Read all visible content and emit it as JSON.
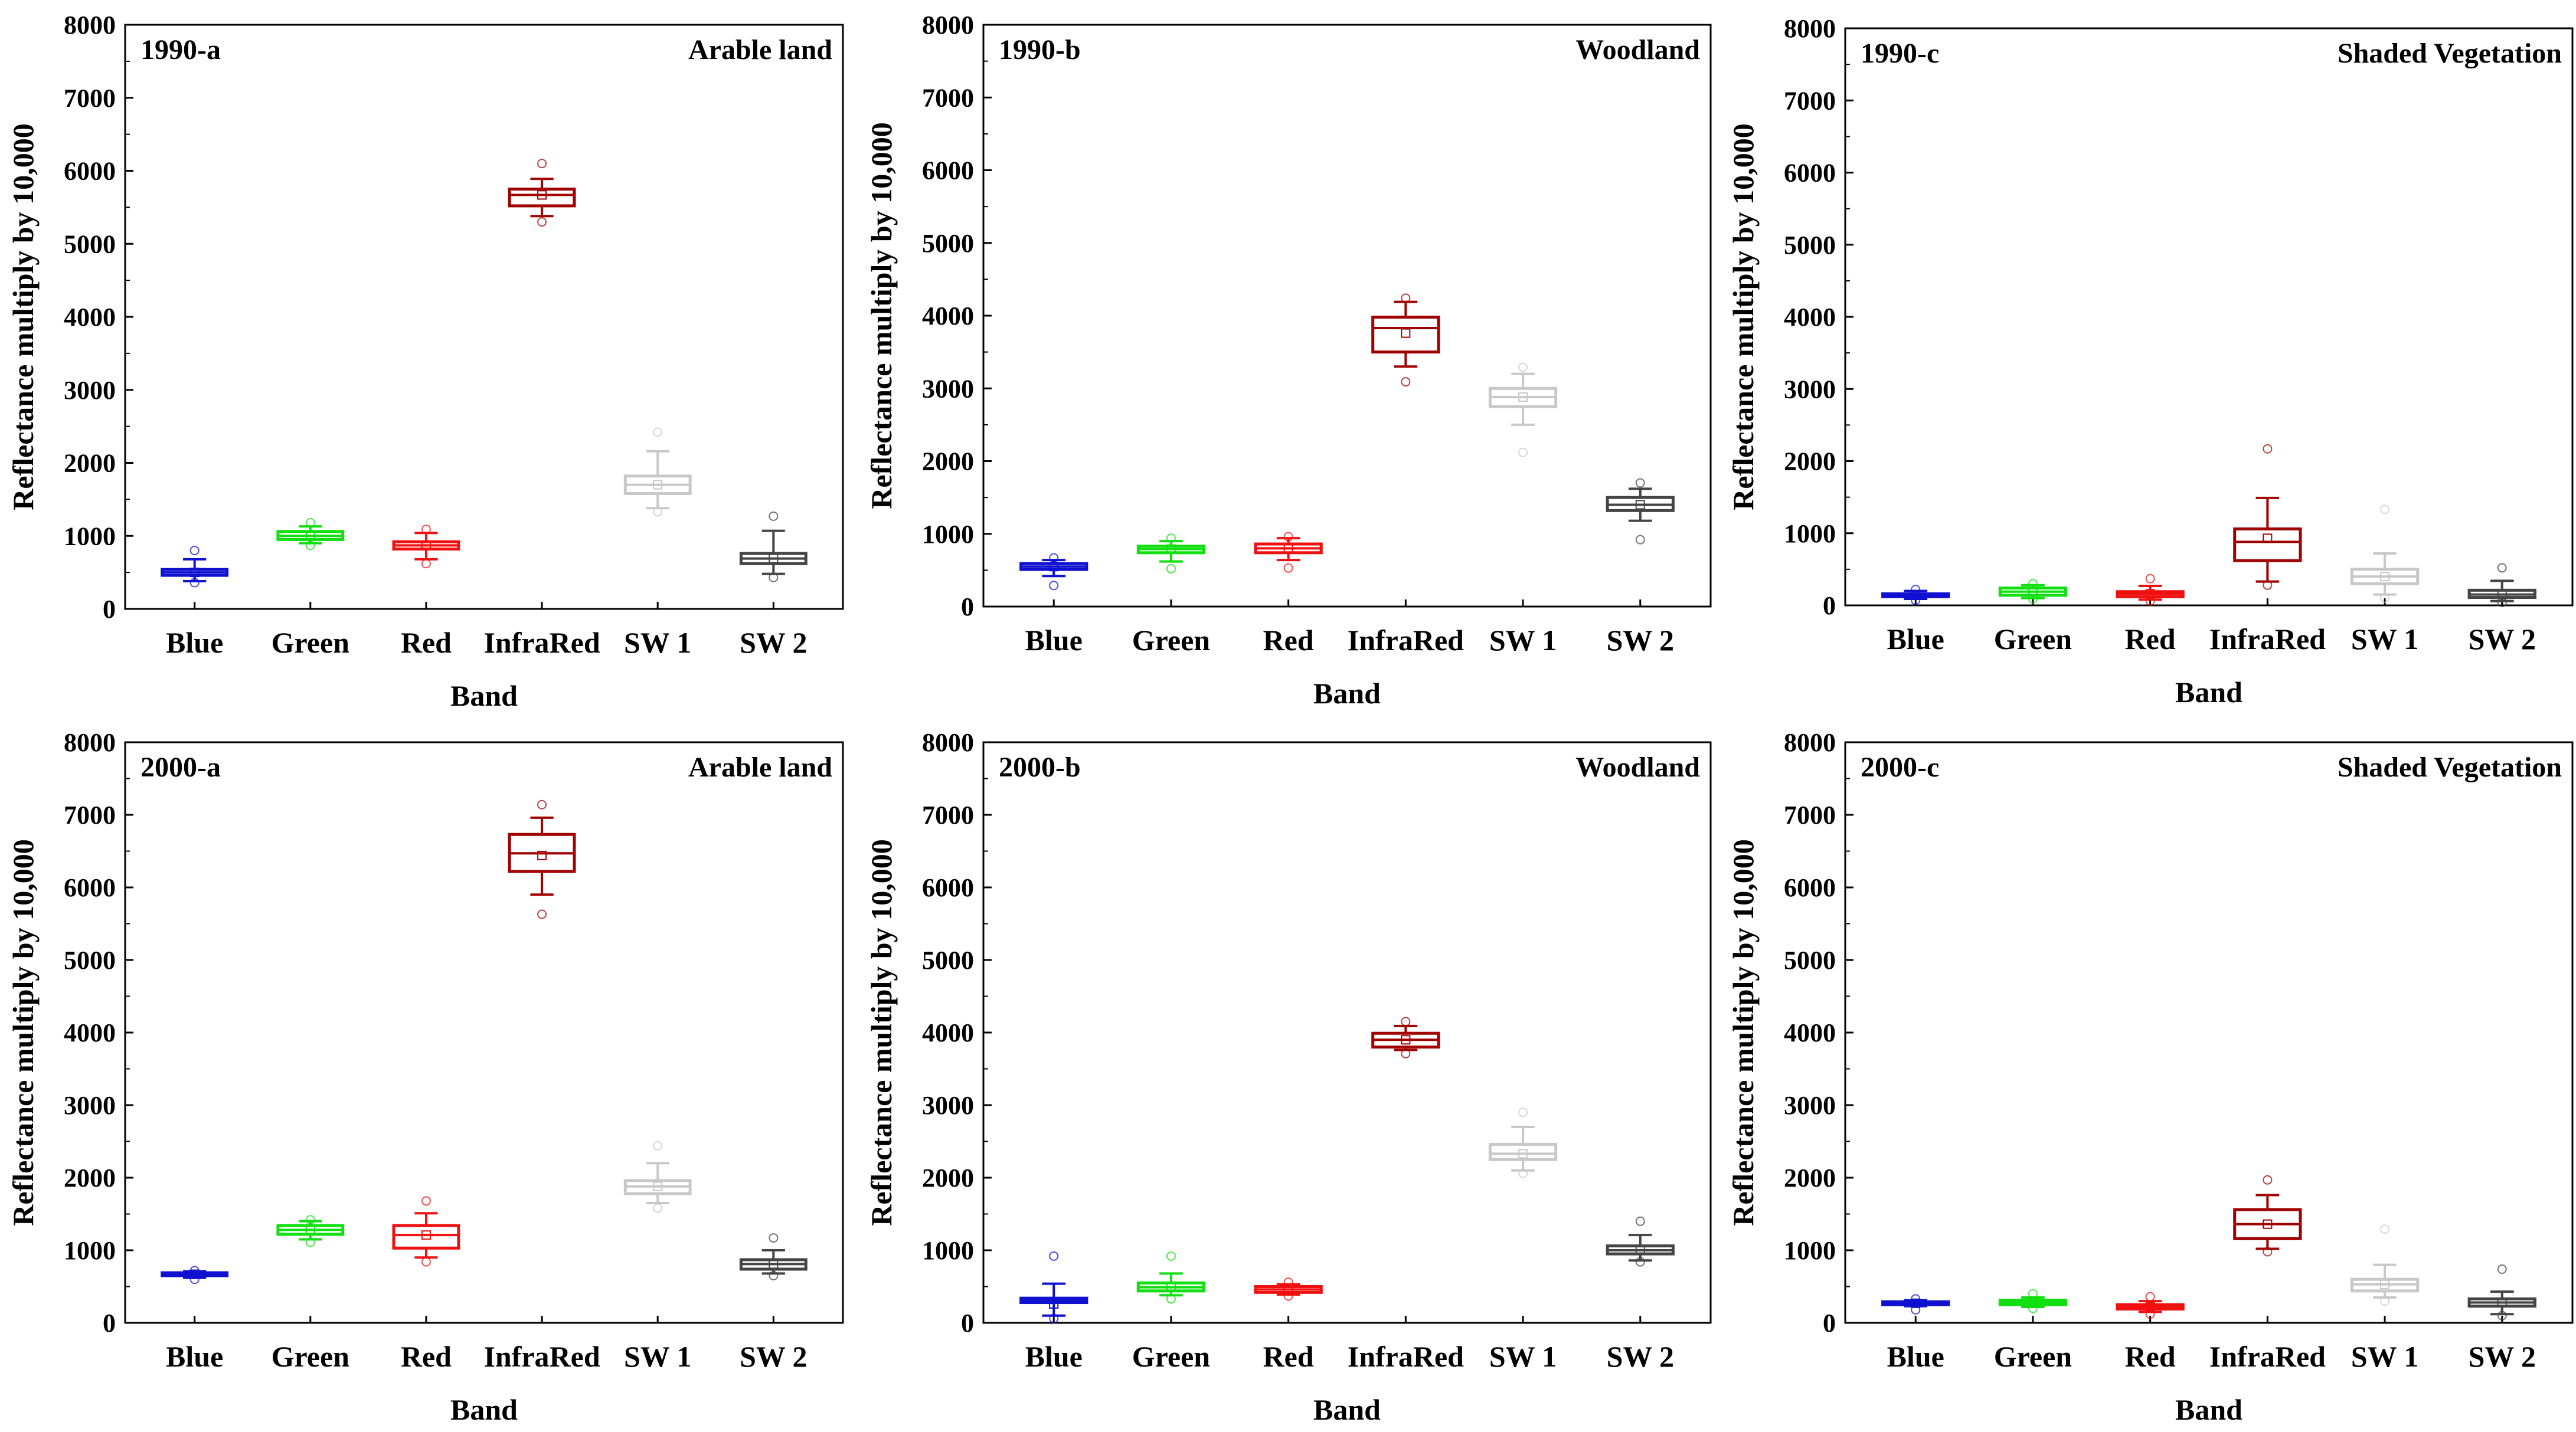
{
  "figure": {
    "shared": {
      "ylabel": "Reflectance multiply by 10,000",
      "xlabel": "Band",
      "ylim": [
        0,
        8000
      ],
      "yticks": [
        0,
        1000,
        2000,
        3000,
        4000,
        5000,
        6000,
        7000,
        8000
      ]
    }
  },
  "chart_data": [
    {
      "type": "box",
      "panel_id": "1990-a",
      "title": "Arable land",
      "xlabel": "Band",
      "ylabel": "Reflectance multiply by 10,000",
      "ylim": [
        0,
        8000
      ],
      "categories": [
        "Blue",
        "Green",
        "Red",
        "InfraRed",
        "SW 1",
        "SW 2"
      ],
      "colors": [
        "#1010d0",
        "#10e010",
        "#f01010",
        "#a00000",
        "#c8c8c8",
        "#444444"
      ],
      "boxes": [
        {
          "low": 380,
          "q1": 460,
          "median": 500,
          "q3": 540,
          "high": 680,
          "mean": 500,
          "outliers": [
            800,
            360
          ]
        },
        {
          "low": 900,
          "q1": 950,
          "median": 1000,
          "q3": 1060,
          "high": 1130,
          "mean": 1000,
          "outliers": [
            1180,
            870
          ]
        },
        {
          "low": 680,
          "q1": 820,
          "median": 870,
          "q3": 920,
          "high": 1040,
          "mean": 870,
          "outliers": [
            1090,
            620
          ]
        },
        {
          "low": 5380,
          "q1": 5520,
          "median": 5670,
          "q3": 5750,
          "high": 5890,
          "mean": 5670,
          "outliers": [
            6100,
            5300
          ]
        },
        {
          "low": 1380,
          "q1": 1580,
          "median": 1700,
          "q3": 1820,
          "high": 2160,
          "mean": 1700,
          "outliers": [
            2420,
            1330
          ]
        },
        {
          "low": 480,
          "q1": 620,
          "median": 690,
          "q3": 760,
          "high": 1070,
          "mean": 690,
          "outliers": [
            1270,
            430
          ]
        }
      ]
    },
    {
      "type": "box",
      "panel_id": "1990-b",
      "title": "Woodland",
      "xlabel": "Band",
      "ylabel": "Reflectance multiply by 10,000",
      "ylim": [
        0,
        8000
      ],
      "categories": [
        "Blue",
        "Green",
        "Red",
        "InfraRed",
        "SW 1",
        "SW 2"
      ],
      "colors": [
        "#1010d0",
        "#10e010",
        "#f01010",
        "#a00000",
        "#c8c8c8",
        "#444444"
      ],
      "boxes": [
        {
          "low": 420,
          "q1": 510,
          "median": 550,
          "q3": 590,
          "high": 640,
          "mean": 550,
          "outliers": [
            670,
            290
          ]
        },
        {
          "low": 620,
          "q1": 740,
          "median": 790,
          "q3": 830,
          "high": 900,
          "mean": 790,
          "outliers": [
            940,
            520
          ]
        },
        {
          "low": 640,
          "q1": 740,
          "median": 800,
          "q3": 860,
          "high": 940,
          "mean": 800,
          "outliers": [
            960,
            530
          ]
        },
        {
          "low": 3300,
          "q1": 3500,
          "median": 3830,
          "q3": 3980,
          "high": 4190,
          "mean": 3760,
          "outliers": [
            4240,
            3090
          ]
        },
        {
          "low": 2500,
          "q1": 2750,
          "median": 2880,
          "q3": 3000,
          "high": 3200,
          "mean": 2880,
          "outliers": [
            3290,
            2120
          ]
        },
        {
          "low": 1180,
          "q1": 1320,
          "median": 1400,
          "q3": 1500,
          "high": 1620,
          "mean": 1400,
          "outliers": [
            1700,
            920
          ]
        }
      ]
    },
    {
      "type": "box",
      "panel_id": "1990-c",
      "title": "Shaded Vegetation",
      "xlabel": "Band",
      "ylabel": "Reflectance multiply by 10,000",
      "ylim": [
        0,
        8000
      ],
      "categories": [
        "Blue",
        "Green",
        "Red",
        "InfraRed",
        "SW 1",
        "SW 2"
      ],
      "colors": [
        "#1010d0",
        "#10e010",
        "#f01010",
        "#a00000",
        "#c8c8c8",
        "#444444"
      ],
      "boxes": [
        {
          "low": 90,
          "q1": 120,
          "median": 140,
          "q3": 160,
          "high": 200,
          "mean": 140,
          "outliers": [
            220,
            70
          ]
        },
        {
          "low": 100,
          "q1": 140,
          "median": 190,
          "q3": 240,
          "high": 280,
          "mean": 190,
          "outliers": [
            300,
            90
          ]
        },
        {
          "low": 80,
          "q1": 120,
          "median": 160,
          "q3": 190,
          "high": 270,
          "mean": 160,
          "outliers": [
            370,
            60
          ]
        },
        {
          "low": 330,
          "q1": 620,
          "median": 880,
          "q3": 1060,
          "high": 1490,
          "mean": 930,
          "outliers": [
            2170,
            280
          ]
        },
        {
          "low": 150,
          "q1": 300,
          "median": 400,
          "q3": 500,
          "high": 720,
          "mean": 400,
          "outliers": [
            1330,
            100
          ]
        },
        {
          "low": 60,
          "q1": 110,
          "median": 150,
          "q3": 210,
          "high": 340,
          "mean": 150,
          "outliers": [
            520,
            40
          ]
        }
      ]
    },
    {
      "type": "box",
      "panel_id": "2000-a",
      "title": "Arable land",
      "xlabel": "Band",
      "ylabel": "Reflectance multiply by 10,000",
      "ylim": [
        0,
        8000
      ],
      "categories": [
        "Blue",
        "Green",
        "Red",
        "InfraRed",
        "SW 1",
        "SW 2"
      ],
      "colors": [
        "#1010d0",
        "#10e010",
        "#f01010",
        "#a00000",
        "#c8c8c8",
        "#444444"
      ],
      "boxes": [
        {
          "low": 620,
          "q1": 650,
          "median": 670,
          "q3": 690,
          "high": 710,
          "mean": 670,
          "outliers": [
            720,
            600
          ]
        },
        {
          "low": 1150,
          "q1": 1220,
          "median": 1280,
          "q3": 1340,
          "high": 1400,
          "mean": 1280,
          "outliers": [
            1420,
            1110
          ]
        },
        {
          "low": 900,
          "q1": 1030,
          "median": 1210,
          "q3": 1340,
          "high": 1510,
          "mean": 1210,
          "outliers": [
            1680,
            840
          ]
        },
        {
          "low": 5900,
          "q1": 6220,
          "median": 6470,
          "q3": 6730,
          "high": 6960,
          "mean": 6440,
          "outliers": [
            7140,
            5630
          ]
        },
        {
          "low": 1650,
          "q1": 1780,
          "median": 1880,
          "q3": 1960,
          "high": 2200,
          "mean": 1880,
          "outliers": [
            2440,
            1580
          ]
        },
        {
          "low": 680,
          "q1": 740,
          "median": 810,
          "q3": 870,
          "high": 1000,
          "mean": 810,
          "outliers": [
            1170,
            650
          ]
        }
      ]
    },
    {
      "type": "box",
      "panel_id": "2000-b",
      "title": "Woodland",
      "xlabel": "Band",
      "ylabel": "Reflectance multiply by 10,000",
      "ylim": [
        0,
        8000
      ],
      "categories": [
        "Blue",
        "Green",
        "Red",
        "InfraRed",
        "SW 1",
        "SW 2"
      ],
      "colors": [
        "#1010d0",
        "#10e010",
        "#f01010",
        "#a00000",
        "#c8c8c8",
        "#444444"
      ],
      "boxes": [
        {
          "low": 100,
          "q1": 280,
          "median": 310,
          "q3": 340,
          "high": 540,
          "mean": 260,
          "outliers": [
            920,
            60
          ]
        },
        {
          "low": 380,
          "q1": 440,
          "median": 490,
          "q3": 550,
          "high": 680,
          "mean": 490,
          "outliers": [
            920,
            330
          ]
        },
        {
          "low": 390,
          "q1": 420,
          "median": 460,
          "q3": 500,
          "high": 530,
          "mean": 460,
          "outliers": [
            560,
            370
          ]
        },
        {
          "low": 3760,
          "q1": 3800,
          "median": 3900,
          "q3": 3990,
          "high": 4090,
          "mean": 3900,
          "outliers": [
            4150,
            3710
          ]
        },
        {
          "low": 2100,
          "q1": 2250,
          "median": 2330,
          "q3": 2460,
          "high": 2700,
          "mean": 2330,
          "outliers": [
            2900,
            2060
          ]
        },
        {
          "low": 860,
          "q1": 950,
          "median": 1000,
          "q3": 1060,
          "high": 1210,
          "mean": 1000,
          "outliers": [
            1400,
            840
          ]
        }
      ]
    },
    {
      "type": "box",
      "panel_id": "2000-c",
      "title": "Shaded Vegetation",
      "xlabel": "Band",
      "ylabel": "Reflectance multiply by 10,000",
      "ylim": [
        0,
        8000
      ],
      "categories": [
        "Blue",
        "Green",
        "Red",
        "InfraRed",
        "SW 1",
        "SW 2"
      ],
      "colors": [
        "#1010d0",
        "#10e010",
        "#f01010",
        "#a00000",
        "#c8c8c8",
        "#444444"
      ],
      "boxes": [
        {
          "low": 230,
          "q1": 250,
          "median": 270,
          "q3": 290,
          "high": 310,
          "mean": 270,
          "outliers": [
            330,
            180
          ]
        },
        {
          "low": 220,
          "q1": 250,
          "median": 280,
          "q3": 310,
          "high": 350,
          "mean": 280,
          "outliers": [
            400,
            200
          ]
        },
        {
          "low": 150,
          "q1": 190,
          "median": 220,
          "q3": 250,
          "high": 300,
          "mean": 220,
          "outliers": [
            360,
            120
          ]
        },
        {
          "low": 1020,
          "q1": 1160,
          "median": 1360,
          "q3": 1560,
          "high": 1760,
          "mean": 1360,
          "outliers": [
            1970,
            980
          ]
        },
        {
          "low": 350,
          "q1": 440,
          "median": 530,
          "q3": 600,
          "high": 800,
          "mean": 530,
          "outliers": [
            1290,
            300
          ]
        },
        {
          "low": 120,
          "q1": 230,
          "median": 280,
          "q3": 330,
          "high": 430,
          "mean": 280,
          "outliers": [
            740,
            100
          ]
        }
      ]
    }
  ]
}
